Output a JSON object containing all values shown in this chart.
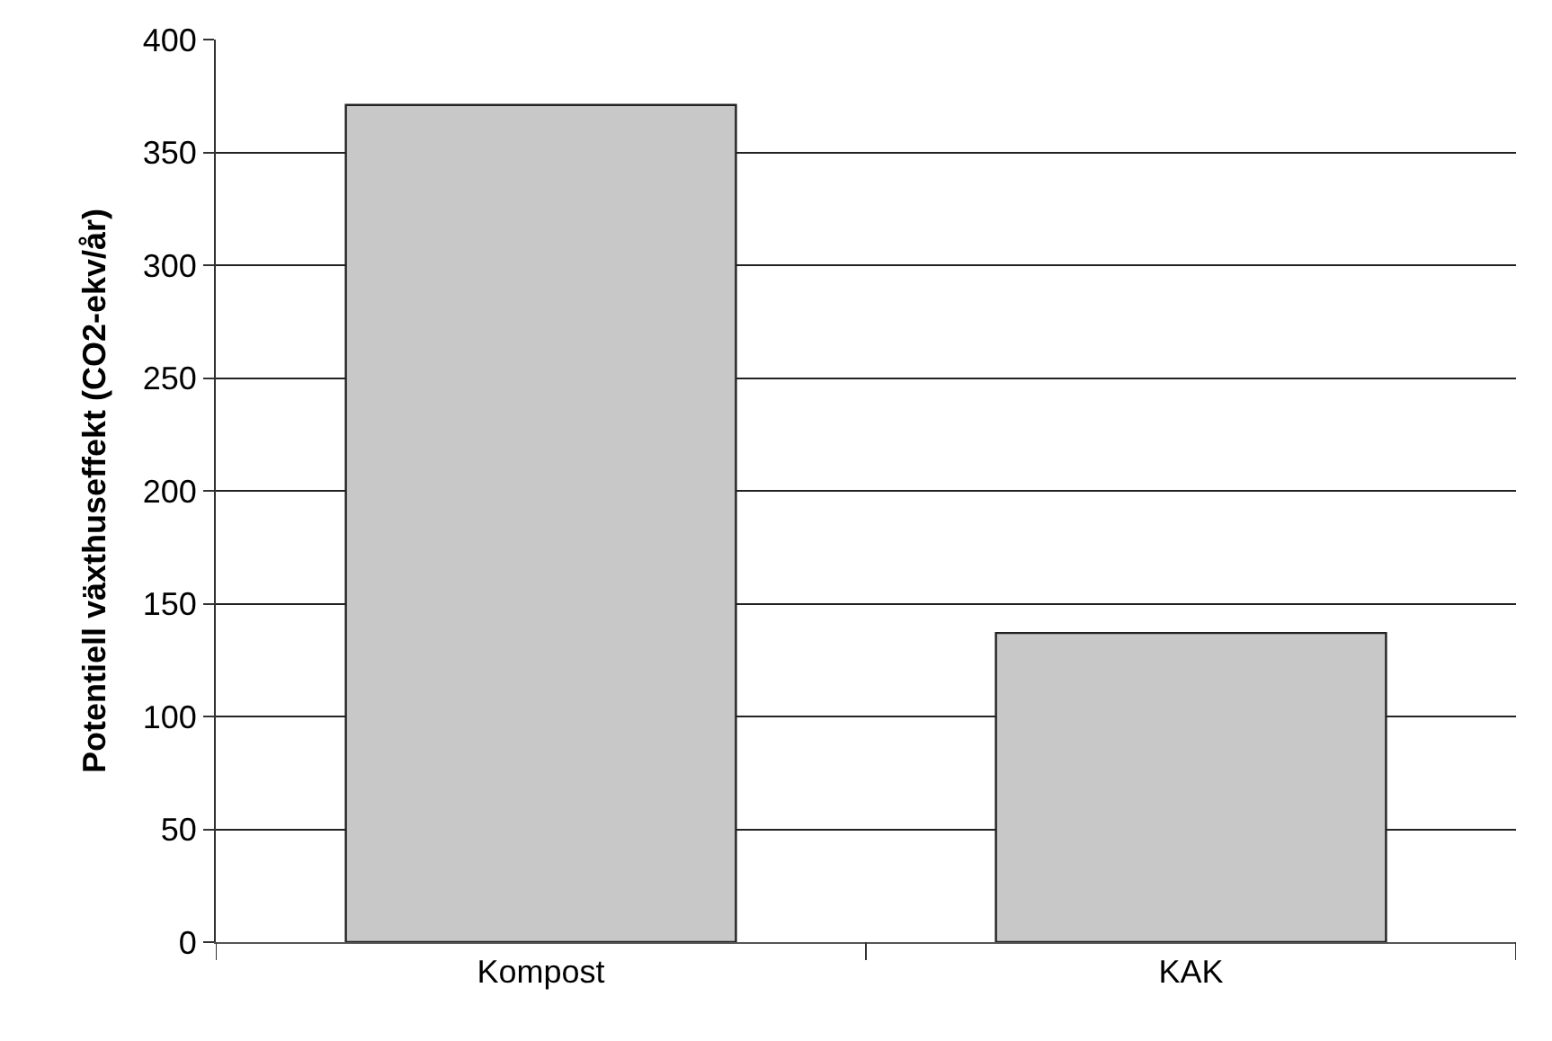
{
  "chart_data": {
    "type": "bar",
    "ylabel": "Potentiell växthuseffekt (CO2-ekv/år)",
    "categories": [
      "Kompost",
      "KAK"
    ],
    "values": [
      371,
      137
    ],
    "color": "#c8c8c8",
    "ylim": [
      0,
      400
    ],
    "yticks": [
      0,
      50,
      100,
      150,
      200,
      250,
      300,
      350,
      400
    ],
    "grid": "y",
    "legend": false
  }
}
